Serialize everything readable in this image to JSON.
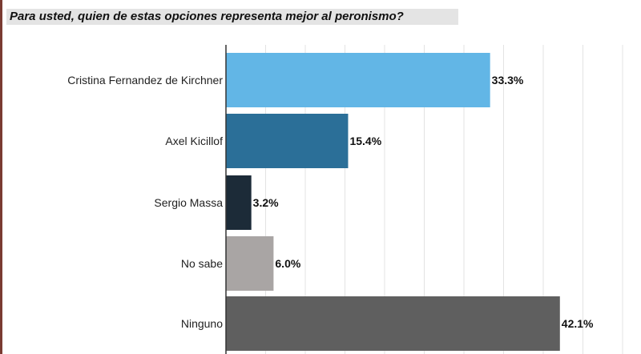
{
  "question": "Para usted, quien de estas opciones representa mejor al peronismo?",
  "chart_data": {
    "type": "bar",
    "orientation": "horizontal",
    "title": "Para usted, quien de estas opciones representa mejor al peronismo?",
    "xlabel": "",
    "ylabel": "",
    "categories": [
      "Cristina Fernandez de Kirchner",
      "Axel Kicillof",
      "Sergio Massa",
      "No sabe",
      "Ninguno"
    ],
    "values": [
      33.3,
      15.4,
      3.2,
      6.0,
      42.1
    ],
    "value_labels": [
      "33.3%",
      "15.4%",
      "3.2%",
      "6.0%",
      "42.1%"
    ],
    "colors": [
      "#62b6e6",
      "#2b6f98",
      "#1c2b38",
      "#a9a5a4",
      "#5f5f5f"
    ],
    "xlim": [
      0,
      50
    ],
    "grid": true,
    "legend": "none"
  }
}
